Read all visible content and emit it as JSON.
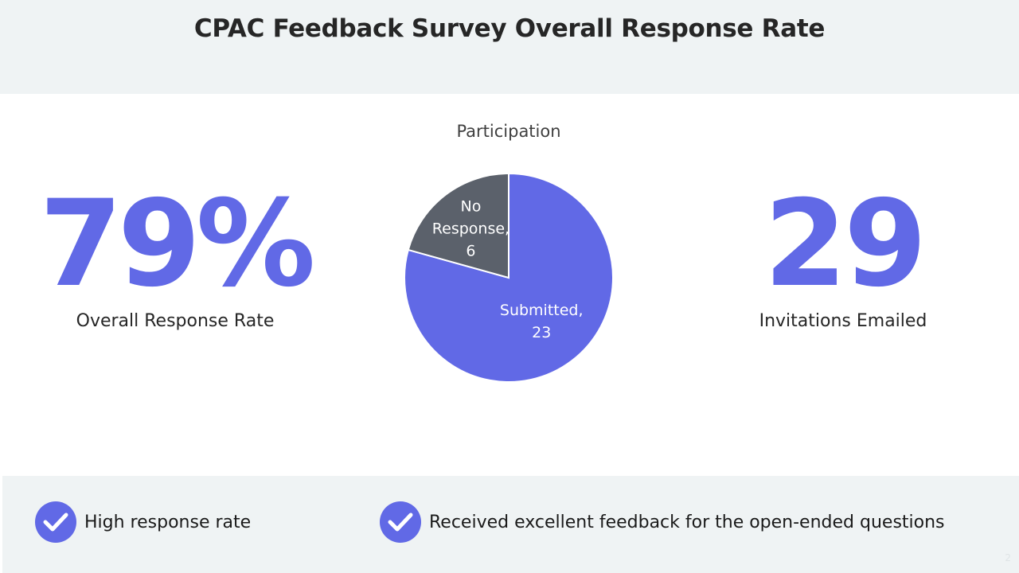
{
  "slide": {
    "title": "CPAC Feedback Survey Overall Response Rate",
    "page_number": "2"
  },
  "metrics": {
    "response_rate": {
      "value": "79%",
      "label": "Overall Response Rate"
    },
    "invitations": {
      "value": "29",
      "label": "Invitations Emailed"
    }
  },
  "highlights": [
    {
      "text": "High response rate",
      "icon": "check-icon"
    },
    {
      "text": "Received excellent feedback for the open-ended questions",
      "icon": "check-icon"
    }
  ],
  "colors": {
    "accent": "#6169e6",
    "no_response": "#5b616b",
    "band": "#eff3f4"
  },
  "chart_data": {
    "type": "pie",
    "title": "Participation",
    "slices": [
      {
        "label": "Submitted",
        "value": 23,
        "color": "#6169e6"
      },
      {
        "label": "No Response",
        "value": 6,
        "color": "#5b616b"
      }
    ],
    "data_labels": [
      {
        "lines": [
          "Submitted,",
          "23"
        ]
      },
      {
        "lines": [
          "No",
          "Response,",
          "6"
        ]
      }
    ]
  }
}
